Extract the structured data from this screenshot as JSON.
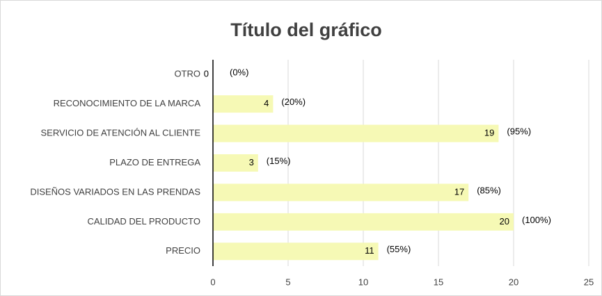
{
  "chart_data": {
    "type": "bar",
    "orientation": "horizontal",
    "title": "Título del gráfico",
    "categories": [
      "OTRO",
      "RECONOCIMIENTO DE LA MARCA",
      "SERVICIO DE ATENCIÓN AL CLIENTE",
      "PLAZO DE ENTREGA",
      "DISEÑOS VARIADOS EN LAS PRENDAS",
      "CALIDAD DEL PRODUCTO",
      "PRECIO"
    ],
    "values": [
      0,
      4,
      19,
      3,
      17,
      20,
      11
    ],
    "share_labels": [
      "(0%)",
      "(20%)",
      "(95%)",
      "(15%)",
      "(85%)",
      "(100%)",
      "(55%)"
    ],
    "color": "#f6f9b5",
    "xlim": [
      0,
      25
    ],
    "xticks": [
      0,
      5,
      10,
      15,
      20,
      25
    ],
    "grid": true
  }
}
